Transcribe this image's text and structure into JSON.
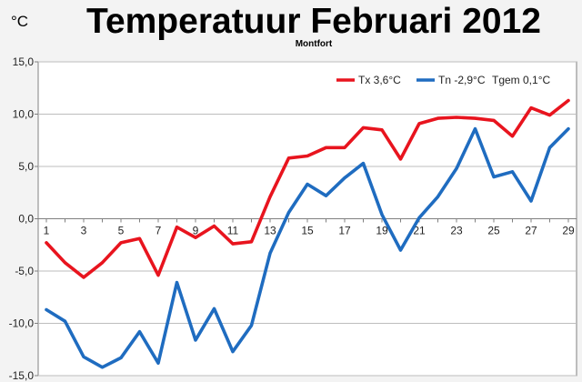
{
  "chart_data": {
    "type": "line",
    "title": "Temperatuur Februari 2012",
    "subtitle": "Montfort",
    "ylabel": "°C",
    "xlabel": "",
    "ylim": [
      -15,
      15
    ],
    "xlim": [
      1,
      29
    ],
    "y_ticks": [
      "15,0",
      "10,0",
      "5,0",
      "0,0",
      "-5,0",
      "-10,0",
      "-15,0"
    ],
    "x_ticks": [
      "1",
      "3",
      "5",
      "7",
      "9",
      "11",
      "13",
      "15",
      "17",
      "19",
      "21",
      "23",
      "25",
      "27",
      "29"
    ],
    "grid": "horizontal",
    "legend_position": "top-right",
    "x": [
      1,
      2,
      3,
      4,
      5,
      6,
      7,
      8,
      9,
      10,
      11,
      12,
      13,
      14,
      15,
      16,
      17,
      18,
      19,
      20,
      21,
      22,
      23,
      24,
      25,
      26,
      27,
      28,
      29
    ],
    "series": [
      {
        "name": "Tx 3,6°C",
        "color": "#e8141e",
        "values": [
          -2.3,
          -4.2,
          -5.6,
          -4.2,
          -2.3,
          -1.9,
          -5.4,
          -0.8,
          -1.8,
          -0.7,
          -2.4,
          -2.2,
          2.1,
          5.8,
          6.0,
          6.8,
          6.8,
          8.7,
          8.5,
          5.7,
          9.1,
          9.6,
          9.7,
          9.6,
          9.4,
          7.9,
          10.6,
          9.9,
          11.3
        ]
      },
      {
        "name": "Tn -2,9°C",
        "color": "#1f6cc0",
        "values": [
          -8.7,
          -9.8,
          -13.2,
          -14.2,
          -13.3,
          -10.8,
          -13.8,
          -6.1,
          -11.6,
          -8.6,
          -12.7,
          -10.2,
          -3.3,
          0.6,
          3.3,
          2.2,
          3.9,
          5.3,
          0.4,
          -3.0,
          0.1,
          2.1,
          4.8,
          8.6,
          4.0,
          4.5,
          1.7,
          6.8,
          8.6
        ]
      }
    ],
    "legend_extra": "Tgem 0,1°C"
  }
}
